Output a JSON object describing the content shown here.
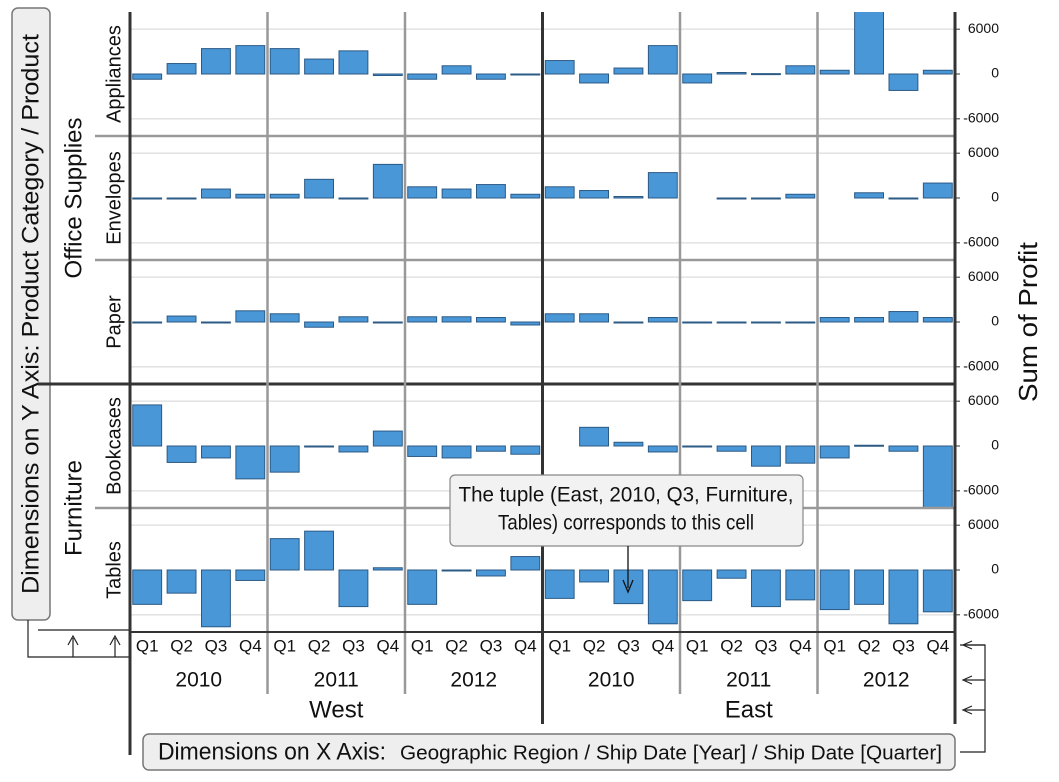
{
  "chart_data": {
    "type": "bar",
    "y_axis_label": "Sum of Profit",
    "y_dimension_label": "Dimensions on Y Axis:  Product Category / Product",
    "x_dimension_label": [
      "Dimensions on X Axis:",
      "Geographic Region / Ship Date [Year] / Ship Date [Quarter]"
    ],
    "annotation": [
      "The tuple (East, 2010,  Q3, Furniture,",
      "Tables) corresponds to this cell"
    ],
    "regions": [
      "West",
      "East"
    ],
    "years": [
      "2010",
      "2011",
      "2012"
    ],
    "quarters": [
      "Q1",
      "Q2",
      "Q3",
      "Q4"
    ],
    "color": "#4a97d8",
    "ylim": [
      -8300,
      8300
    ],
    "yticks": [
      -6000,
      0,
      6000
    ],
    "grid": true,
    "row_groups": [
      {
        "name": "Office Supplies",
        "series": [
          {
            "name": "Appliances",
            "values": [
              -700,
              1400,
              3400,
              3800,
              3400,
              2000,
              3100,
              -200,
              -700,
              1100,
              -700,
              0,
              1800,
              -1200,
              800,
              3800,
              -1200,
              200,
              50,
              1100,
              500,
              9500,
              -2200,
              500
            ]
          },
          {
            "name": "Envelopes",
            "values": [
              0,
              0,
              1200,
              500,
              500,
              2500,
              0,
              4500,
              1500,
              1200,
              1800,
              500,
              1500,
              1000,
              200,
              3400,
              null,
              0,
              0,
              500,
              null,
              700,
              0,
              2000
            ]
          },
          {
            "name": "Paper",
            "values": [
              0,
              800,
              0,
              1500,
              1100,
              -700,
              700,
              0,
              700,
              700,
              600,
              -400,
              1100,
              1100,
              0,
              600,
              0,
              0,
              0,
              0,
              600,
              600,
              1400,
              600
            ]
          }
        ]
      },
      {
        "name": "Furniture",
        "series": [
          {
            "name": "Bookcases",
            "values": [
              5500,
              -2200,
              -1600,
              -4400,
              -3500,
              0,
              -800,
              2000,
              -1400,
              -1600,
              -700,
              -1100,
              null,
              2500,
              500,
              -800,
              0,
              -700,
              -2700,
              -2300,
              -1600,
              100,
              -700,
              -8500
            ]
          },
          {
            "name": "Tables",
            "values": [
              -4600,
              -3100,
              -7600,
              -1400,
              4200,
              5200,
              -4900,
              300,
              -4600,
              0,
              -800,
              1800,
              -3800,
              -1600,
              -4500,
              -7200,
              -4100,
              -1100,
              -4900,
              -4000,
              -5300,
              -4600,
              -7200,
              -5600
            ]
          }
        ]
      }
    ]
  }
}
